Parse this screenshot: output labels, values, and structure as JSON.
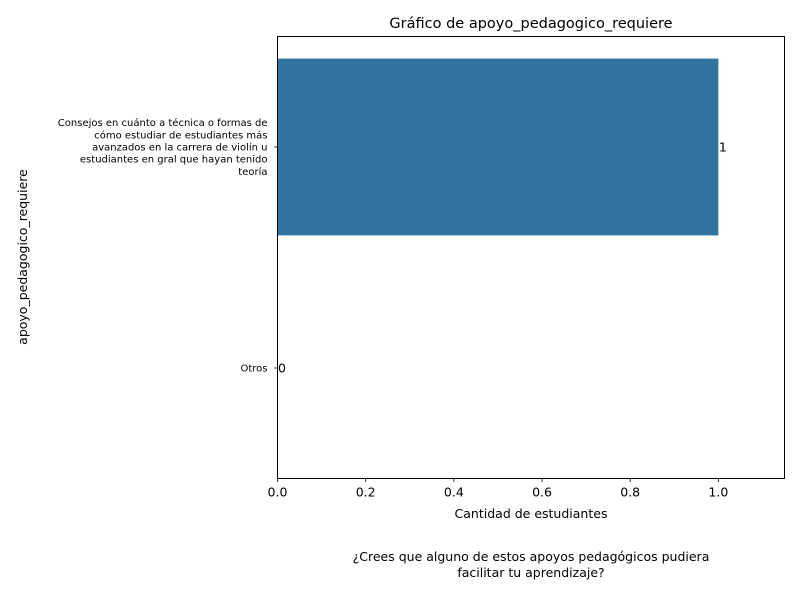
{
  "chart_data": {
    "type": "bar",
    "orientation": "horizontal",
    "title": "Gráfico de apoyo_pedagogico_requiere",
    "xlabel": "Cantidad de estudiantes",
    "ylabel": "apoyo_pedagogico_requiere",
    "categories": [
      [
        "Consejos en cuánto a técnica o formas de",
        "cómo estudiar de estudiantes más",
        "avanzados en la carrera de violín u",
        "estudiantes en gral que hayan tenido",
        "teoría"
      ],
      [
        "Otros"
      ]
    ],
    "values": [
      1,
      0
    ],
    "data_labels": [
      "1",
      "0"
    ],
    "xlim": [
      0,
      1.15
    ],
    "xticks": [
      0.0,
      0.2,
      0.4,
      0.6,
      0.8,
      1.0
    ],
    "xtick_labels": [
      "0.0",
      "0.2",
      "0.4",
      "0.6",
      "0.8",
      "1.0"
    ],
    "bar_color": "#3274a1",
    "grid": false,
    "caption_lines": [
      "¿Crees que alguno de estos apoyos pedagógicos pudiera",
      "facilitar tu aprendizaje?"
    ]
  }
}
